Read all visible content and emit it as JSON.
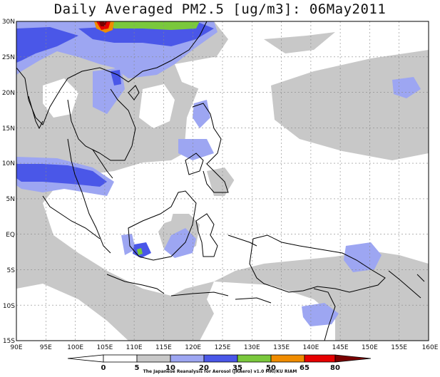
{
  "title": "Daily Averaged PM2.5 [ug/m3]: 06May2011",
  "map": {
    "lon_range": [
      90,
      160
    ],
    "lat_range": [
      -15,
      30
    ],
    "lon_ticks": [
      "90E",
      "95E",
      "100E",
      "105E",
      "110E",
      "115E",
      "120E",
      "125E",
      "130E",
      "135E",
      "140E",
      "145E",
      "150E",
      "155E",
      "160E"
    ],
    "lat_ticks": [
      "30N",
      "25N",
      "20N",
      "15N",
      "10N",
      "5N",
      "EQ",
      "5S",
      "10S",
      "15S"
    ]
  },
  "colorbar": {
    "levels": [
      "0",
      "5",
      "10",
      "20",
      "35",
      "50",
      "65",
      "80"
    ],
    "colors": [
      "#ffffff",
      "#ffffff",
      "#c8c8c8",
      "#9da6f2",
      "#4a57e8",
      "#7ac83c",
      "#f08c00",
      "#e60000",
      "#7a0000"
    ]
  },
  "credit": "The Japanese Reanalysis for Aerosol (JRAero) v1.0 MRI/KU RIAM"
}
